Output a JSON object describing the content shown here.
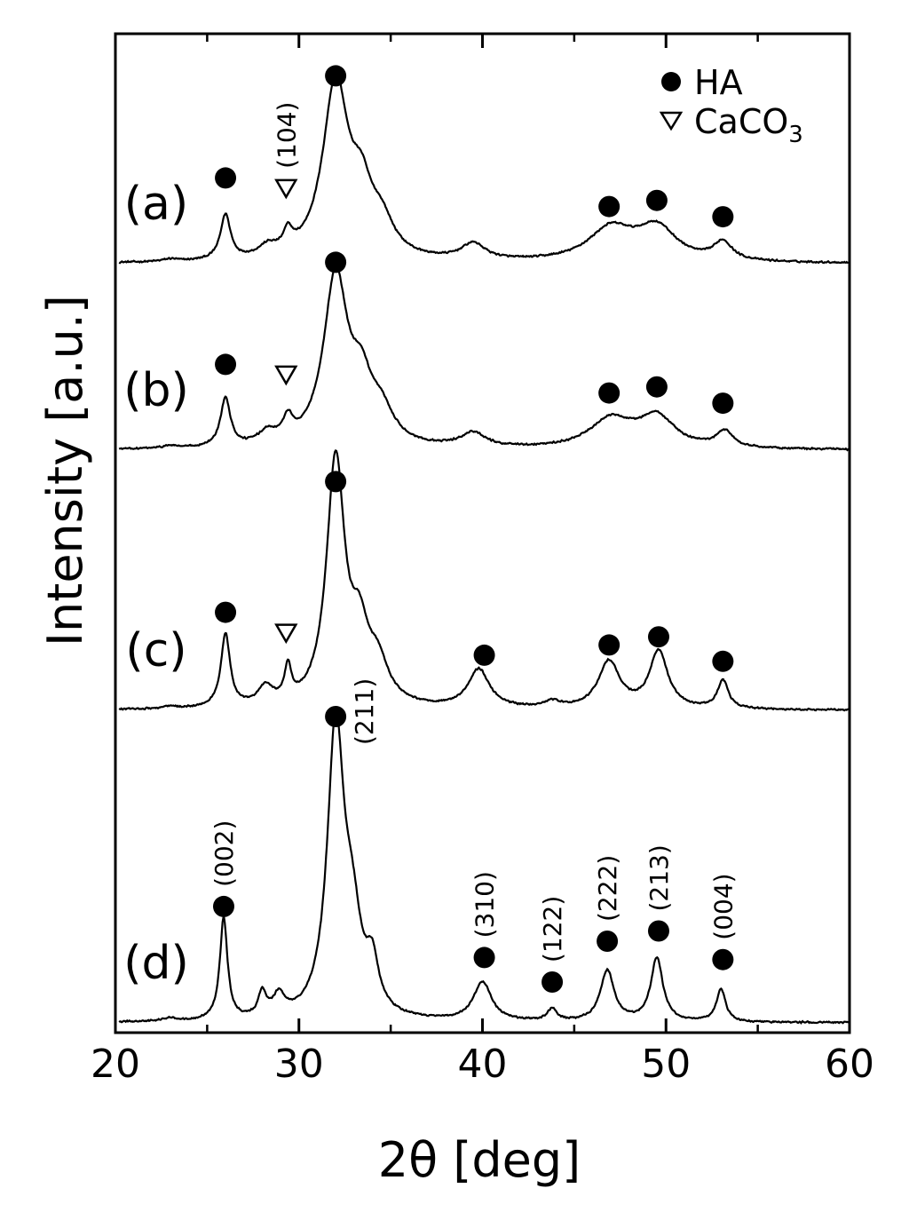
{
  "chart_data": {
    "type": "line",
    "xlabel": "2θ [deg]",
    "ylabel": "Intensity [a.u.]",
    "xlim": [
      20,
      60
    ],
    "xticks": [
      20,
      30,
      40,
      50,
      60
    ],
    "legend": {
      "placement": "top-right",
      "entries": [
        {
          "marker": "filled-circle",
          "label": "HA"
        },
        {
          "marker": "open-triangle-down",
          "label": "CaCO",
          "subscript": "3"
        }
      ]
    },
    "series": [
      {
        "name": "(a)",
        "baseline": 0.0,
        "noise": 0.01,
        "peaks": [
          [
            23.0,
            0.012,
            0.5
          ],
          [
            26.0,
            0.22,
            0.33
          ],
          [
            28.3,
            0.05,
            0.6
          ],
          [
            29.4,
            0.09,
            0.3
          ],
          [
            32.0,
            0.86,
            0.85
          ],
          [
            33.4,
            0.26,
            0.7
          ],
          [
            34.5,
            0.15,
            0.8
          ],
          [
            39.5,
            0.08,
            0.8
          ],
          [
            47.0,
            0.16,
            1.5
          ],
          [
            49.5,
            0.16,
            1.3
          ],
          [
            53.1,
            0.09,
            0.6
          ]
        ],
        "markers": [
          {
            "type": "circle",
            "x": 26.0,
            "y": 0.42
          },
          {
            "type": "triangle",
            "x": 29.3,
            "y": 0.37,
            "label": "(104)"
          },
          {
            "type": "circle",
            "x": 32.0,
            "y": 0.92
          },
          {
            "type": "circle",
            "x": 46.9,
            "y": 0.28
          },
          {
            "type": "circle",
            "x": 49.5,
            "y": 0.31
          },
          {
            "type": "circle",
            "x": 53.1,
            "y": 0.23
          }
        ]
      },
      {
        "name": "(b)",
        "baseline": 0.0,
        "noise": 0.01,
        "peaks": [
          [
            23.0,
            0.012,
            0.5
          ],
          [
            26.0,
            0.24,
            0.32
          ],
          [
            28.3,
            0.06,
            0.6
          ],
          [
            29.4,
            0.1,
            0.3
          ],
          [
            32.0,
            0.83,
            0.8
          ],
          [
            33.4,
            0.25,
            0.7
          ],
          [
            34.5,
            0.14,
            0.8
          ],
          [
            39.5,
            0.07,
            0.8
          ],
          [
            47.0,
            0.14,
            1.4
          ],
          [
            49.5,
            0.15,
            1.2
          ],
          [
            53.2,
            0.08,
            0.55
          ]
        ],
        "markers": [
          {
            "type": "circle",
            "x": 26.0,
            "y": 0.42
          },
          {
            "type": "triangle",
            "x": 29.3,
            "y": 0.37
          },
          {
            "type": "circle",
            "x": 32.0,
            "y": 0.92
          },
          {
            "type": "circle",
            "x": 46.9,
            "y": 0.28
          },
          {
            "type": "circle",
            "x": 49.5,
            "y": 0.31
          },
          {
            "type": "circle",
            "x": 53.1,
            "y": 0.23
          }
        ]
      },
      {
        "name": "(c)",
        "baseline": 0.0,
        "noise": 0.01,
        "peaks": [
          [
            23.0,
            0.01,
            0.5
          ],
          [
            26.0,
            0.36,
            0.3
          ],
          [
            28.2,
            0.09,
            0.5
          ],
          [
            29.4,
            0.16,
            0.22
          ],
          [
            32.0,
            1.2,
            0.6
          ],
          [
            33.3,
            0.3,
            0.6
          ],
          [
            34.3,
            0.18,
            0.7
          ],
          [
            39.8,
            0.19,
            0.7
          ],
          [
            43.8,
            0.03,
            0.5
          ],
          [
            46.9,
            0.23,
            0.7
          ],
          [
            49.6,
            0.28,
            0.6
          ],
          [
            53.1,
            0.14,
            0.35
          ]
        ],
        "markers": [
          {
            "type": "circle",
            "x": 26.0,
            "y": 0.48
          },
          {
            "type": "triangle",
            "x": 29.3,
            "y": 0.38
          },
          {
            "type": "circle",
            "x": 32.0,
            "y": 1.12
          },
          {
            "type": "circle",
            "x": 40.1,
            "y": 0.27
          },
          {
            "type": "circle",
            "x": 46.9,
            "y": 0.32
          },
          {
            "type": "circle",
            "x": 49.6,
            "y": 0.36
          },
          {
            "type": "circle",
            "x": 53.1,
            "y": 0.24
          }
        ]
      },
      {
        "name": "(d)",
        "baseline": 0.0,
        "noise": 0.01,
        "peaks": [
          [
            23.0,
            0.015,
            0.5
          ],
          [
            25.9,
            0.5,
            0.25
          ],
          [
            28.0,
            0.12,
            0.25
          ],
          [
            28.9,
            0.1,
            0.4
          ],
          [
            32.0,
            1.4,
            0.55
          ],
          [
            32.9,
            0.4,
            0.6
          ],
          [
            34.0,
            0.22,
            0.4
          ],
          [
            40.0,
            0.19,
            0.6
          ],
          [
            43.8,
            0.06,
            0.3
          ],
          [
            46.8,
            0.25,
            0.45
          ],
          [
            49.5,
            0.31,
            0.4
          ],
          [
            53.0,
            0.16,
            0.3
          ]
        ],
        "markers": [
          {
            "type": "circle",
            "x": 25.9,
            "y": 0.57,
            "label": "(002)"
          },
          {
            "type": "circle",
            "x": 32.0,
            "y": 1.5,
            "label": "(211)"
          },
          {
            "type": "circle",
            "x": 40.1,
            "y": 0.32,
            "label": "(310)"
          },
          {
            "type": "circle",
            "x": 43.8,
            "y": 0.2,
            "label": "(122)"
          },
          {
            "type": "circle",
            "x": 46.8,
            "y": 0.4,
            "label": "(222)"
          },
          {
            "type": "circle",
            "x": 49.6,
            "y": 0.45,
            "label": "(213)"
          },
          {
            "type": "circle",
            "x": 53.1,
            "y": 0.31,
            "label": "(004)"
          }
        ]
      }
    ]
  }
}
